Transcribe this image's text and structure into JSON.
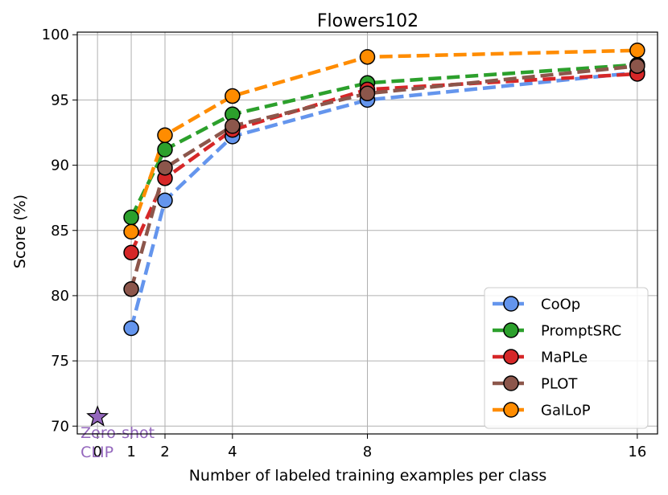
{
  "chart_data": {
    "type": "line",
    "title": "Flowers102",
    "xlabel": "Number of labeled training examples per class",
    "ylabel": "Score (%)",
    "x_ticks": [
      0,
      1,
      2,
      4,
      8,
      16
    ],
    "y_ticks": [
      70,
      75,
      80,
      85,
      90,
      95,
      100
    ],
    "xlim": [
      -0.6,
      16.6
    ],
    "ylim": [
      69.4,
      100.2
    ],
    "grid": true,
    "legend_position": "bottom-right",
    "x": [
      1,
      2,
      4,
      8,
      16
    ],
    "series": [
      {
        "name": "CoOp",
        "color": "#6495ED",
        "values": [
          77.5,
          87.3,
          92.2,
          95.0,
          97.1
        ]
      },
      {
        "name": "PromptSRC",
        "color": "#2CA02C",
        "values": [
          86.0,
          91.2,
          93.9,
          96.3,
          97.7
        ]
      },
      {
        "name": "MaPLe",
        "color": "#D62728",
        "values": [
          83.3,
          89.0,
          92.7,
          95.8,
          97.0
        ]
      },
      {
        "name": "PLOT",
        "color": "#8C564B",
        "values": [
          80.5,
          89.8,
          93.0,
          95.5,
          97.6
        ]
      },
      {
        "name": "GalLoP",
        "color": "#FF8C00",
        "values": [
          84.9,
          92.3,
          95.3,
          98.3,
          98.8
        ]
      }
    ],
    "zero_shot": {
      "x": 0,
      "y": 70.7,
      "label": "Zero-shot\nCLIP",
      "color": "#9467BD"
    }
  }
}
